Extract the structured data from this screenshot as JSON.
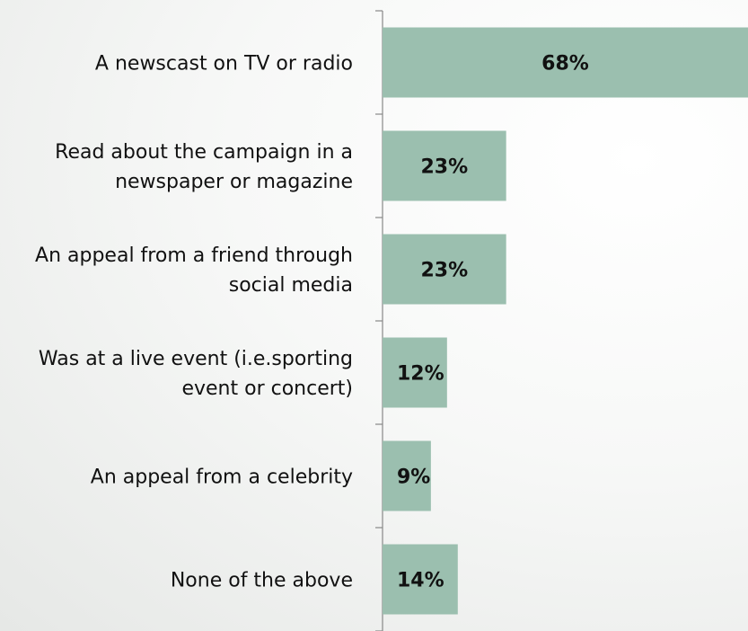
{
  "chart_data": {
    "type": "bar",
    "orientation": "horizontal",
    "categories": [
      [
        "A newscast on TV or radio"
      ],
      [
        "Read about the campaign in a",
        "newspaper or magazine"
      ],
      [
        "An appeal from a friend through",
        "social media"
      ],
      [
        "Was at a live event (i.e.sporting",
        "event or concert)"
      ],
      [
        "An appeal from a celebrity"
      ],
      [
        "None of the above"
      ]
    ],
    "values": [
      68,
      23,
      23,
      12,
      9,
      14
    ],
    "value_labels": [
      "68%",
      "23%",
      "23%",
      "12%",
      "9%",
      "14%"
    ],
    "unit": "%",
    "xlim": [
      0,
      68
    ],
    "grid": false,
    "legend": "none",
    "bar_color": "#9bbfaf",
    "axis_color": "#888888"
  }
}
